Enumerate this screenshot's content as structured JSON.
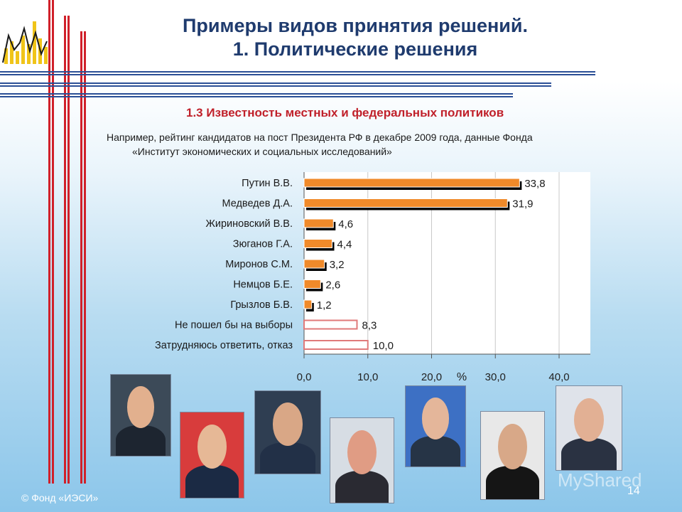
{
  "title": {
    "line1": "Примеры видов принятия решений.",
    "line2": "1. Политические решения"
  },
  "subtitle": "1.3 Известность местных и федеральных политиков",
  "note": {
    "line1": "Например, рейтинг кандидатов на пост Президента РФ в декабре 2009 года, данные Фонда",
    "line2": "«Институт экономических и социальных исследований»"
  },
  "chart_data": {
    "type": "bar",
    "orientation": "horizontal",
    "categories": [
      "Путин В.В.",
      "Медведев Д.А.",
      "Жириновский В.В.",
      "Зюганов Г.А.",
      "Миронов С.М.",
      "Немцов Б.Е.",
      "Грызлов Б.В.",
      "Не пошел бы на выборы",
      "Затрудняюсь ответить, отказ"
    ],
    "values": [
      33.8,
      31.9,
      4.6,
      4.4,
      3.2,
      2.6,
      1.2,
      8.3,
      10.0
    ],
    "value_labels": [
      "33,8",
      "31,9",
      "4,6",
      "4,4",
      "3,2",
      "2,6",
      "1,2",
      "8,3",
      "10,0"
    ],
    "highlighted": [
      true,
      true,
      true,
      true,
      true,
      true,
      true,
      false,
      false
    ],
    "xlim": [
      0,
      40
    ],
    "xticks": [
      "0,0",
      "10,0",
      "20,0",
      "30,0",
      "40,0"
    ],
    "xtick_values": [
      0,
      10,
      20,
      30,
      40
    ],
    "xlabel": "%",
    "grid": true,
    "colors": {
      "highlight_fill": "#f08a2a",
      "highlight_shadow": "#000000",
      "plain_fill": "#ffffff",
      "plain_border": "#e07a7a",
      "grid": "#c8c8c8"
    }
  },
  "photos": [
    {
      "name": "putin-photo",
      "bg": "#3c4a58",
      "skin": "#e2b08e",
      "suit": "#1d2530"
    },
    {
      "name": "medvedev-photo",
      "bg": "#d83c3c",
      "skin": "#e6b896",
      "suit": "#1b2a44"
    },
    {
      "name": "zhirinovsky-photo",
      "bg": "#2f3e52",
      "skin": "#d9a786",
      "suit": "#223047"
    },
    {
      "name": "zyuganov-photo",
      "bg": "#d7dde4",
      "skin": "#e09c84",
      "suit": "#2a2a32"
    },
    {
      "name": "mironov-photo",
      "bg": "#3d70c4",
      "skin": "#e4b69a",
      "suit": "#263446"
    },
    {
      "name": "nemtsov-photo",
      "bg": "#e8e8e8",
      "skin": "#d8a888",
      "suit": "#151515"
    },
    {
      "name": "gryzlov-photo",
      "bg": "#dfe3ea",
      "skin": "#e2b094",
      "suit": "#2a3242"
    }
  ],
  "footer": "© Фонд «ИЭСИ»",
  "page_number": "14",
  "watermark": "MyShared"
}
